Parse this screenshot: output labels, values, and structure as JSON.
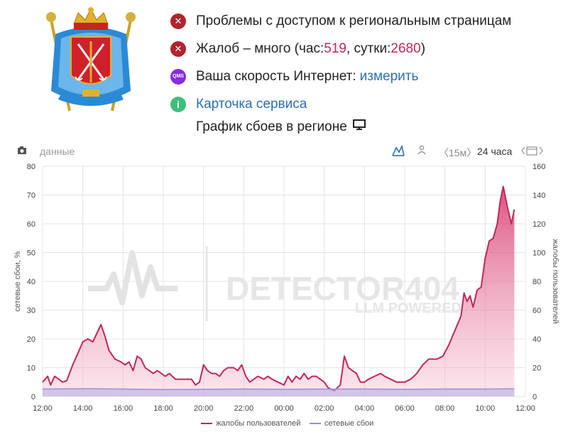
{
  "status": {
    "access_problem": "Проблемы с доступом к региональным страницам",
    "complaints_prefix": "Жалоб – много (час: ",
    "complaints_hour": "519",
    "complaints_mid": ", сутки: ",
    "complaints_day": "2680",
    "complaints_suffix": ")",
    "speed_label": "Ваша скорость Интернет: ",
    "speed_link": "измерить",
    "service_card": "Карточка сервиса",
    "speed_icon_text": "QMS"
  },
  "graph_title": "График сбоев в регионе",
  "toolbar": {
    "data_label": "данные",
    "interval_15m": "〈15м〉",
    "interval_24h": "24 часа"
  },
  "watermark": {
    "brand": "DETECTOR404",
    "tagline": "LLM POWERED"
  },
  "colors": {
    "complaints_line": "#c0275a",
    "outage_line": "#9b8fd6",
    "accent_red": "#b2232e",
    "link_blue": "#2a6fb5"
  },
  "icons": {
    "access": "x-circle-icon",
    "complaints": "x-circle-icon",
    "speed": "qms-badge-icon",
    "service": "info-icon",
    "monitor": "monitor-icon",
    "camera": "camera-icon",
    "line_chart": "line-chart-icon",
    "person": "person-icon",
    "calendar": "calendar-icon"
  },
  "chart_data": {
    "type": "area",
    "ylabel_left": "сетевые сбои, %",
    "ylabel_right": "жалобы пользователей",
    "ylim_left": [
      0,
      80
    ],
    "ylim_right": [
      0,
      160
    ],
    "yticks_left": [
      "0",
      "10",
      "20",
      "30",
      "40",
      "50",
      "60",
      "70",
      "80"
    ],
    "yticks_right": [
      "0",
      "20",
      "40",
      "60",
      "80",
      "100",
      "120",
      "140",
      "160"
    ],
    "x_range_hours": [
      12,
      36
    ],
    "xticks": [
      {
        "h": 12,
        "label": "12:00"
      },
      {
        "h": 14,
        "label": "14:00"
      },
      {
        "h": 16,
        "label": "16:00"
      },
      {
        "h": 18,
        "label": "18:00"
      },
      {
        "h": 20,
        "label": "20:00"
      },
      {
        "h": 22,
        "label": "22:00"
      },
      {
        "h": 24,
        "label": "00:00"
      },
      {
        "h": 26,
        "label": "02:00"
      },
      {
        "h": 28,
        "label": "04:00"
      },
      {
        "h": 30,
        "label": "06:00"
      },
      {
        "h": 32,
        "label": "08:00"
      },
      {
        "h": 34,
        "label": "10:00"
      },
      {
        "h": 36,
        "label": "12:00"
      }
    ],
    "grid": true,
    "legend_position": "bottom",
    "series": [
      {
        "name": "жалобы пользователей",
        "axis": "right",
        "color": "#c0275a",
        "points": [
          [
            12.0,
            10
          ],
          [
            12.25,
            14
          ],
          [
            12.4,
            8
          ],
          [
            12.6,
            14
          ],
          [
            12.8,
            12
          ],
          [
            13.0,
            10
          ],
          [
            13.2,
            11
          ],
          [
            13.5,
            22
          ],
          [
            13.75,
            30
          ],
          [
            14.0,
            38
          ],
          [
            14.25,
            40
          ],
          [
            14.5,
            38
          ],
          [
            14.7,
            44
          ],
          [
            14.9,
            50
          ],
          [
            15.1,
            42
          ],
          [
            15.3,
            32
          ],
          [
            15.6,
            26
          ],
          [
            15.9,
            24
          ],
          [
            16.1,
            22
          ],
          [
            16.3,
            24
          ],
          [
            16.5,
            18
          ],
          [
            16.7,
            28
          ],
          [
            16.9,
            26
          ],
          [
            17.1,
            20
          ],
          [
            17.3,
            18
          ],
          [
            17.5,
            16
          ],
          [
            17.7,
            18
          ],
          [
            17.9,
            16
          ],
          [
            18.1,
            14
          ],
          [
            18.3,
            16
          ],
          [
            18.6,
            12
          ],
          [
            19.0,
            12
          ],
          [
            19.4,
            12
          ],
          [
            19.6,
            8
          ],
          [
            19.8,
            10
          ],
          [
            20.0,
            22
          ],
          [
            20.2,
            18
          ],
          [
            20.4,
            16
          ],
          [
            20.6,
            16
          ],
          [
            20.8,
            14
          ],
          [
            21.0,
            18
          ],
          [
            21.2,
            20
          ],
          [
            21.5,
            20
          ],
          [
            21.7,
            18
          ],
          [
            21.9,
            22
          ],
          [
            22.1,
            14
          ],
          [
            22.3,
            10
          ],
          [
            22.5,
            12
          ],
          [
            22.7,
            14
          ],
          [
            23.0,
            12
          ],
          [
            23.2,
            14
          ],
          [
            23.4,
            12
          ],
          [
            23.7,
            10
          ],
          [
            24.0,
            8
          ],
          [
            24.2,
            14
          ],
          [
            24.4,
            10
          ],
          [
            24.6,
            14
          ],
          [
            24.8,
            12
          ],
          [
            25.0,
            16
          ],
          [
            25.2,
            12
          ],
          [
            25.4,
            14
          ],
          [
            25.6,
            14
          ],
          [
            25.8,
            12
          ],
          [
            26.0,
            10
          ],
          [
            26.2,
            6
          ],
          [
            26.5,
            4
          ],
          [
            26.8,
            8
          ],
          [
            27.0,
            28
          ],
          [
            27.2,
            20
          ],
          [
            27.4,
            18
          ],
          [
            27.6,
            16
          ],
          [
            27.8,
            10
          ],
          [
            28.0,
            10
          ],
          [
            28.2,
            12
          ],
          [
            28.5,
            14
          ],
          [
            28.8,
            16
          ],
          [
            29.0,
            14
          ],
          [
            29.3,
            12
          ],
          [
            29.6,
            10
          ],
          [
            30.0,
            10
          ],
          [
            30.3,
            12
          ],
          [
            30.6,
            16
          ],
          [
            30.9,
            22
          ],
          [
            31.2,
            26
          ],
          [
            31.6,
            26
          ],
          [
            31.9,
            28
          ],
          [
            32.2,
            36
          ],
          [
            32.5,
            46
          ],
          [
            32.8,
            56
          ],
          [
            32.95,
            72
          ],
          [
            33.1,
            66
          ],
          [
            33.25,
            70
          ],
          [
            33.4,
            62
          ],
          [
            33.6,
            74
          ],
          [
            33.8,
            76
          ],
          [
            34.0,
            96
          ],
          [
            34.2,
            108
          ],
          [
            34.4,
            110
          ],
          [
            34.6,
            120
          ],
          [
            34.75,
            136
          ],
          [
            34.9,
            146
          ],
          [
            35.1,
            132
          ],
          [
            35.3,
            120
          ],
          [
            35.45,
            130
          ]
        ]
      },
      {
        "name": "сетевые сбои",
        "axis": "left",
        "color": "#9b8fd6",
        "points": [
          [
            12.0,
            2.6
          ],
          [
            14.0,
            2.7
          ],
          [
            16.0,
            2.6
          ],
          [
            18.0,
            2.4
          ],
          [
            20.0,
            2.5
          ],
          [
            22.0,
            2.6
          ],
          [
            24.0,
            2.5
          ],
          [
            26.0,
            2.6
          ],
          [
            28.0,
            2.6
          ],
          [
            30.0,
            2.5
          ],
          [
            32.0,
            2.6
          ],
          [
            34.0,
            2.6
          ],
          [
            35.45,
            2.7
          ]
        ]
      }
    ]
  }
}
